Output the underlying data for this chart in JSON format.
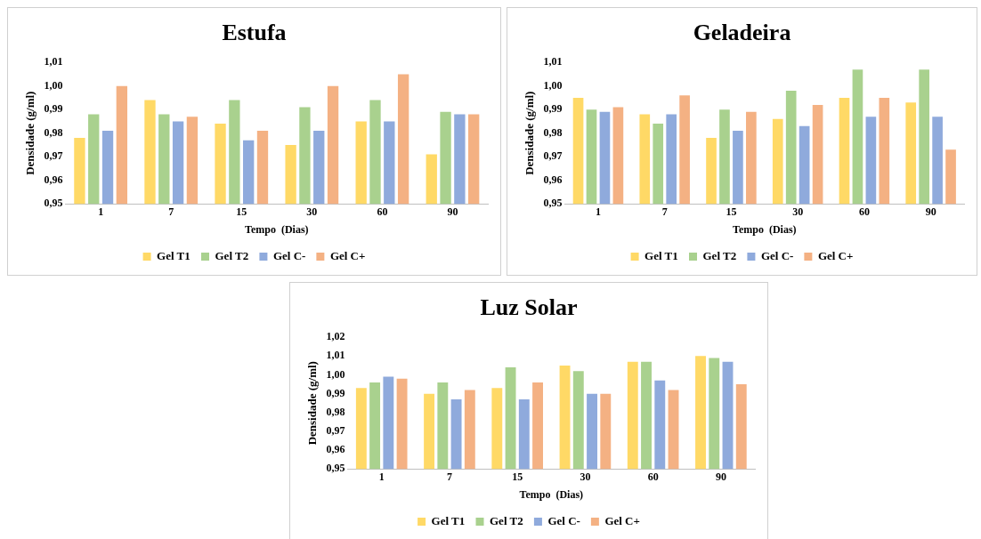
{
  "chart_data": [
    {
      "type": "bar",
      "title": "Estufa",
      "xlabel": "Tempo  (Dias)",
      "ylabel": "Densidade (g/ml)",
      "categories": [
        "1",
        "7",
        "15",
        "30",
        "60",
        "90"
      ],
      "series": [
        {
          "name": "Gel T1",
          "color": "#ffd966",
          "values": [
            0.978,
            0.994,
            0.984,
            0.975,
            0.985,
            0.971
          ]
        },
        {
          "name": "Gel T2",
          "color": "#a9d18e",
          "values": [
            0.988,
            0.988,
            0.994,
            0.991,
            0.994,
            0.989
          ]
        },
        {
          "name": "Gel C-",
          "color": "#8faadc",
          "values": [
            0.981,
            0.985,
            0.977,
            0.981,
            0.985,
            0.988
          ]
        },
        {
          "name": "Gel C+",
          "color": "#f4b183",
          "values": [
            1.0,
            0.987,
            0.981,
            1.0,
            1.005,
            0.988
          ]
        }
      ],
      "ylim": [
        0.95,
        1.01
      ],
      "yticks": [
        {
          "value": 0.95,
          "label": "0,95"
        },
        {
          "value": 0.96,
          "label": "0,96"
        },
        {
          "value": 0.97,
          "label": "0,97"
        },
        {
          "value": 0.98,
          "label": "0,98"
        },
        {
          "value": 0.99,
          "label": "0,99"
        },
        {
          "value": 1.0,
          "label": "1,00"
        },
        {
          "value": 1.01,
          "label": "1,01"
        }
      ],
      "grid": false,
      "legend": "bottom"
    },
    {
      "type": "bar",
      "title": "Geladeira",
      "xlabel": "Tempo  (Dias)",
      "ylabel": "Densidade (g/ml)",
      "categories": [
        "1",
        "7",
        "15",
        "30",
        "60",
        "90"
      ],
      "series": [
        {
          "name": "Gel T1",
          "color": "#ffd966",
          "values": [
            0.995,
            0.988,
            0.978,
            0.986,
            0.995,
            0.993
          ]
        },
        {
          "name": "Gel T2",
          "color": "#a9d18e",
          "values": [
            0.99,
            0.984,
            0.99,
            0.998,
            1.007,
            1.007
          ]
        },
        {
          "name": "Gel C-",
          "color": "#8faadc",
          "values": [
            0.989,
            0.988,
            0.981,
            0.983,
            0.987,
            0.987
          ]
        },
        {
          "name": "Gel C+",
          "color": "#f4b183",
          "values": [
            0.991,
            0.996,
            0.989,
            0.992,
            0.995,
            0.973
          ]
        }
      ],
      "ylim": [
        0.95,
        1.01
      ],
      "yticks": [
        {
          "value": 0.95,
          "label": "0,95"
        },
        {
          "value": 0.96,
          "label": "0,96"
        },
        {
          "value": 0.97,
          "label": "0,97"
        },
        {
          "value": 0.98,
          "label": "0,98"
        },
        {
          "value": 0.99,
          "label": "0,99"
        },
        {
          "value": 1.0,
          "label": "1,00"
        },
        {
          "value": 1.01,
          "label": "1,01"
        }
      ],
      "grid": false,
      "legend": "bottom"
    },
    {
      "type": "bar",
      "title": "Luz Solar",
      "xlabel": "Tempo  (Dias)",
      "ylabel": "Densidade (g/ml)",
      "categories": [
        "1",
        "7",
        "15",
        "30",
        "60",
        "90"
      ],
      "series": [
        {
          "name": "Gel T1",
          "color": "#ffd966",
          "values": [
            0.993,
            0.99,
            0.993,
            1.005,
            1.007,
            1.01
          ]
        },
        {
          "name": "Gel T2",
          "color": "#a9d18e",
          "values": [
            0.996,
            0.996,
            1.004,
            1.002,
            1.007,
            1.009
          ]
        },
        {
          "name": "Gel C-",
          "color": "#8faadc",
          "values": [
            0.999,
            0.987,
            0.987,
            0.99,
            0.997,
            1.007
          ]
        },
        {
          "name": "Gel C+",
          "color": "#f4b183",
          "values": [
            0.998,
            0.992,
            0.996,
            0.99,
            0.992,
            0.995
          ]
        }
      ],
      "ylim": [
        0.95,
        1.02
      ],
      "yticks": [
        {
          "value": 0.95,
          "label": "0,95"
        },
        {
          "value": 0.96,
          "label": "0,96"
        },
        {
          "value": 0.97,
          "label": "0,97"
        },
        {
          "value": 0.98,
          "label": "0,98"
        },
        {
          "value": 0.99,
          "label": "0,99"
        },
        {
          "value": 1.0,
          "label": "1,00"
        },
        {
          "value": 1.01,
          "label": "1,01"
        },
        {
          "value": 1.02,
          "label": "1,02"
        }
      ],
      "grid": false,
      "legend": "bottom"
    }
  ]
}
